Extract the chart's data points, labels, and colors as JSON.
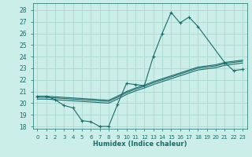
{
  "xlabel": "Humidex (Indice chaleur)",
  "bg_color": "#cceee8",
  "grid_color": "#aad8d0",
  "line_color": "#1a6b6b",
  "xlim": [
    -0.5,
    23.5
  ],
  "ylim": [
    17.8,
    28.6
  ],
  "yticks": [
    18,
    19,
    20,
    21,
    22,
    23,
    24,
    25,
    26,
    27,
    28
  ],
  "xticks": [
    0,
    1,
    2,
    3,
    4,
    5,
    6,
    7,
    8,
    9,
    10,
    11,
    12,
    13,
    14,
    15,
    16,
    17,
    18,
    19,
    20,
    21,
    22,
    23
  ],
  "xtick_labels": [
    "0",
    "1",
    "2",
    "3",
    "4",
    "5",
    "6",
    "7",
    "8",
    "9",
    "10",
    "11",
    "12",
    "13",
    "14",
    "15",
    "16",
    "17",
    "18",
    "19",
    "20",
    "21",
    "22",
    "23"
  ],
  "series": [
    {
      "x": [
        0,
        1,
        2,
        3,
        4,
        5,
        6,
        7,
        8,
        9,
        10,
        11,
        12,
        13,
        14,
        15,
        16,
        17,
        18,
        21,
        22,
        23
      ],
      "y": [
        20.6,
        20.6,
        20.3,
        19.8,
        19.6,
        18.5,
        18.4,
        18.0,
        18.0,
        19.9,
        21.7,
        21.6,
        21.5,
        24.0,
        26.0,
        27.8,
        26.9,
        27.4,
        26.6,
        23.5,
        22.8,
        22.9
      ],
      "marker": "+"
    },
    {
      "x": [
        0,
        1,
        2,
        3,
        4,
        5,
        6,
        7,
        8,
        9,
        10,
        11,
        12,
        13,
        14,
        15,
        16,
        17,
        18,
        19,
        20,
        21,
        22,
        23
      ],
      "y": [
        20.6,
        20.6,
        20.55,
        20.5,
        20.45,
        20.4,
        20.35,
        20.3,
        20.25,
        20.6,
        21.0,
        21.3,
        21.55,
        21.85,
        22.1,
        22.35,
        22.6,
        22.85,
        23.1,
        23.2,
        23.3,
        23.5,
        23.6,
        23.7
      ],
      "marker": null
    },
    {
      "x": [
        0,
        1,
        2,
        3,
        4,
        5,
        6,
        7,
        8,
        9,
        10,
        11,
        12,
        13,
        14,
        15,
        16,
        17,
        18,
        19,
        20,
        21,
        22,
        23
      ],
      "y": [
        20.5,
        20.5,
        20.45,
        20.4,
        20.35,
        20.3,
        20.25,
        20.2,
        20.15,
        20.5,
        20.9,
        21.2,
        21.45,
        21.75,
        22.0,
        22.25,
        22.5,
        22.75,
        23.0,
        23.1,
        23.2,
        23.4,
        23.5,
        23.6
      ],
      "marker": null
    },
    {
      "x": [
        0,
        1,
        2,
        3,
        4,
        5,
        6,
        7,
        8,
        9,
        10,
        11,
        12,
        13,
        14,
        15,
        16,
        17,
        18,
        19,
        20,
        21,
        22,
        23
      ],
      "y": [
        20.35,
        20.35,
        20.3,
        20.25,
        20.2,
        20.15,
        20.1,
        20.05,
        20.0,
        20.35,
        20.75,
        21.05,
        21.3,
        21.6,
        21.85,
        22.1,
        22.35,
        22.6,
        22.85,
        22.95,
        23.05,
        23.25,
        23.35,
        23.45
      ],
      "marker": null
    }
  ]
}
